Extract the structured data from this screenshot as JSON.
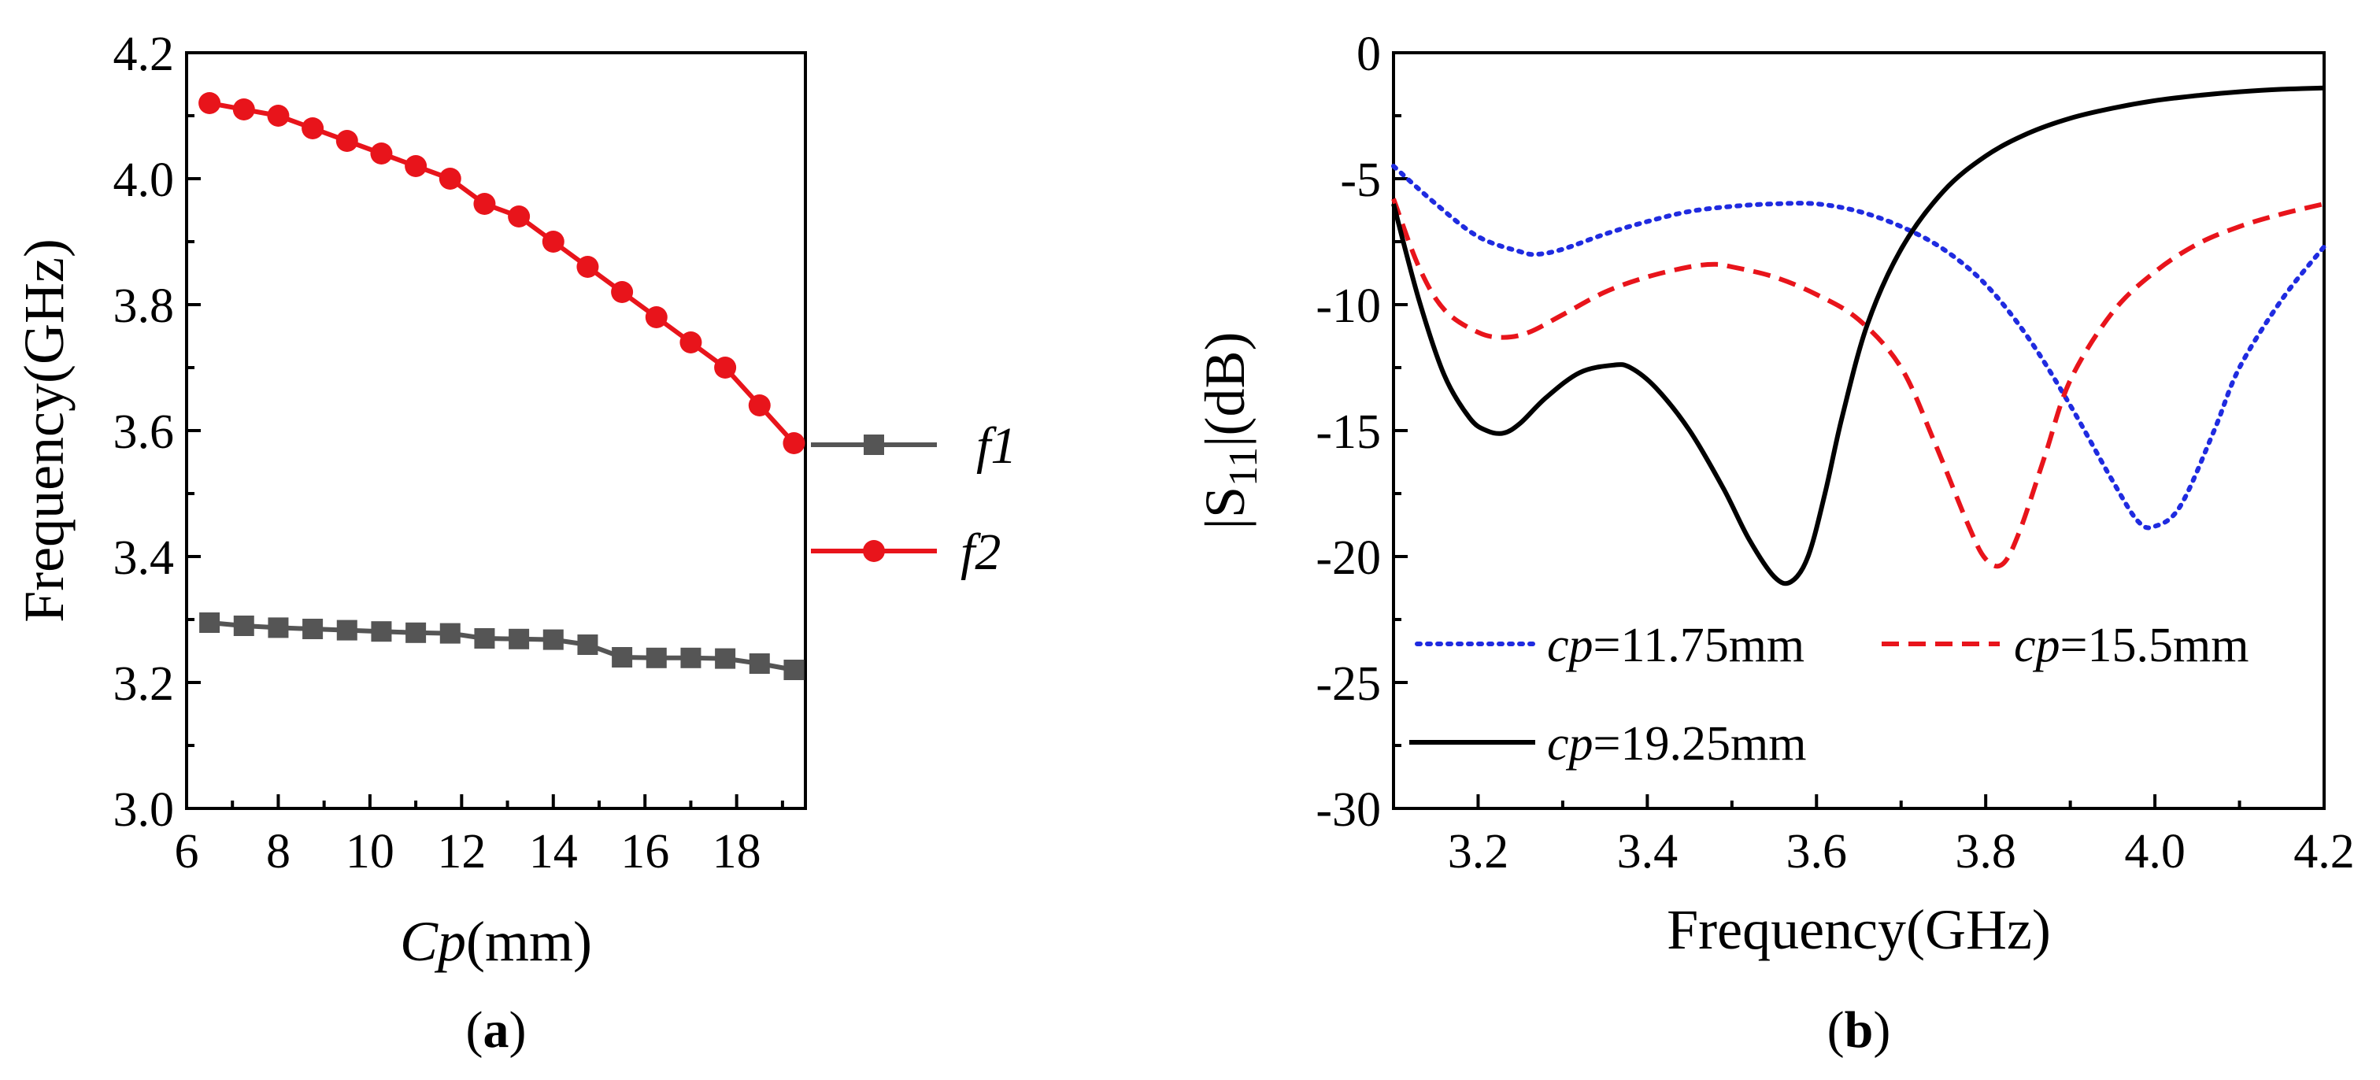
{
  "chart_data": [
    {
      "type": "line",
      "panel_label": "(a)",
      "panel_letter": "a",
      "xlabel": "Cp(mm)",
      "xlabel_italic": "Cp",
      "xlabel_rest": "(mm)",
      "ylabel": "Frequency(GHz)",
      "xlim": [
        6,
        19.5
      ],
      "ylim": [
        3.0,
        4.2
      ],
      "x_ticks": [
        6,
        8,
        10,
        12,
        14,
        16,
        18
      ],
      "x_tick_labels": [
        "6",
        "8",
        "10",
        "12",
        "14",
        "16",
        "18"
      ],
      "y_ticks": [
        3.0,
        3.2,
        3.4,
        3.6,
        3.8,
        4.0,
        4.2
      ],
      "y_tick_labels": [
        "3.0",
        "3.2",
        "3.4",
        "3.6",
        "3.8",
        "4.0",
        "4.2"
      ],
      "x": [
        6.5,
        7.25,
        8.0,
        8.75,
        9.5,
        10.25,
        11.0,
        11.75,
        12.5,
        13.25,
        14.0,
        14.75,
        15.5,
        16.25,
        17.0,
        17.75,
        18.5,
        19.25
      ],
      "series": [
        {
          "name": "f1",
          "color": "#555555",
          "marker": "square",
          "values": [
            3.295,
            3.29,
            3.287,
            3.285,
            3.283,
            3.281,
            3.279,
            3.278,
            3.27,
            3.269,
            3.268,
            3.26,
            3.24,
            3.239,
            3.239,
            3.238,
            3.23,
            3.22
          ]
        },
        {
          "name": "f2",
          "color": "#e8141b",
          "marker": "circle",
          "values": [
            4.12,
            4.11,
            4.1,
            4.08,
            4.06,
            4.04,
            4.02,
            4.0,
            3.96,
            3.94,
            3.9,
            3.86,
            3.82,
            3.78,
            3.74,
            3.7,
            3.64,
            3.58
          ]
        }
      ],
      "legend": [
        "f1",
        "f2"
      ],
      "legend_position": "center-right"
    },
    {
      "type": "line",
      "panel_label": "(b)",
      "panel_letter": "b",
      "xlabel": "Frequency(GHz)",
      "ylabel": "|S11|(dB)",
      "ylabel_pre": "|S",
      "ylabel_sub": "11",
      "ylabel_post": "|(dB)",
      "xlim": [
        3.1,
        4.2
      ],
      "ylim": [
        -30,
        0
      ],
      "x_ticks": [
        3.2,
        3.4,
        3.6,
        3.8,
        4.0,
        4.2
      ],
      "x_tick_labels": [
        "3.2",
        "3.4",
        "3.6",
        "3.8",
        "4.0",
        "4.2"
      ],
      "y_ticks": [
        0,
        -5,
        -10,
        -15,
        -20,
        -25,
        -30
      ],
      "y_tick_labels": [
        "0",
        "-5",
        "-10",
        "-15",
        "-20",
        "-25",
        "-30"
      ],
      "series": [
        {
          "name": "cp=11.75mm",
          "name_italic": "cp",
          "name_rest": "=11.75mm",
          "color": "#1f2be0",
          "style": "dotted",
          "x": [
            3.1,
            3.15,
            3.2,
            3.25,
            3.27,
            3.3,
            3.35,
            3.4,
            3.45,
            3.5,
            3.55,
            3.6,
            3.65,
            3.7,
            3.75,
            3.8,
            3.85,
            3.9,
            3.95,
            3.98,
            4.0,
            4.03,
            4.07,
            4.1,
            4.15,
            4.2
          ],
          "values": [
            -4.5,
            -6.0,
            -7.3,
            -7.9,
            -8.0,
            -7.8,
            -7.2,
            -6.7,
            -6.3,
            -6.1,
            -6.0,
            -6.0,
            -6.3,
            -6.9,
            -7.8,
            -9.2,
            -11.3,
            -14.0,
            -17.0,
            -18.6,
            -18.8,
            -18.0,
            -15.0,
            -12.5,
            -9.8,
            -7.7
          ]
        },
        {
          "name": "cp=15.5mm",
          "name_italic": "cp",
          "name_rest": "=15.5mm",
          "color": "#e8141b",
          "style": "dashed",
          "x": [
            3.1,
            3.13,
            3.16,
            3.2,
            3.23,
            3.26,
            3.3,
            3.35,
            3.4,
            3.45,
            3.48,
            3.5,
            3.55,
            3.6,
            3.65,
            3.7,
            3.74,
            3.78,
            3.8,
            3.82,
            3.84,
            3.87,
            3.9,
            3.95,
            4.0,
            4.05,
            4.1,
            4.15,
            4.2
          ],
          "values": [
            -5.8,
            -8.5,
            -10.2,
            -11.1,
            -11.3,
            -11.1,
            -10.4,
            -9.5,
            -8.9,
            -8.5,
            -8.4,
            -8.5,
            -8.9,
            -9.6,
            -10.6,
            -12.5,
            -15.5,
            -18.8,
            -20.1,
            -20.3,
            -19.0,
            -16.0,
            -13.0,
            -10.3,
            -8.7,
            -7.6,
            -6.9,
            -6.4,
            -6.0
          ]
        },
        {
          "name": "cp=19.25mm",
          "name_italic": "cp",
          "name_rest": "=19.25mm",
          "color": "#000000",
          "style": "solid",
          "x": [
            3.1,
            3.13,
            3.16,
            3.19,
            3.21,
            3.23,
            3.25,
            3.28,
            3.32,
            3.36,
            3.38,
            3.41,
            3.45,
            3.49,
            3.52,
            3.55,
            3.57,
            3.59,
            3.61,
            3.63,
            3.66,
            3.7,
            3.75,
            3.8,
            3.85,
            3.9,
            3.95,
            4.0,
            4.05,
            4.1,
            4.15,
            4.2
          ],
          "values": [
            -6.0,
            -9.8,
            -12.8,
            -14.5,
            -15.0,
            -15.1,
            -14.7,
            -13.7,
            -12.7,
            -12.4,
            -12.5,
            -13.3,
            -15.0,
            -17.3,
            -19.3,
            -20.8,
            -21.0,
            -20.0,
            -17.5,
            -14.5,
            -10.8,
            -7.8,
            -5.5,
            -4.1,
            -3.2,
            -2.6,
            -2.2,
            -1.9,
            -1.7,
            -1.55,
            -1.45,
            -1.4
          ]
        }
      ],
      "legend_position": "bottom-left"
    }
  ]
}
